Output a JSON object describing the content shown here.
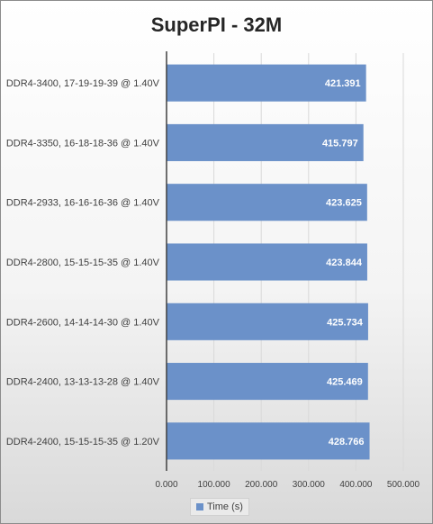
{
  "chart_data": {
    "type": "bar",
    "orientation": "horizontal",
    "title": "SuperPI - 32M",
    "categories": [
      "DDR4-3400, 17-19-19-39 @ 1.40V",
      "DDR4-3350, 16-18-18-36 @ 1.40V",
      "DDR4-2933, 16-16-16-36 @ 1.40V",
      "DDR4-2800, 15-15-15-35 @ 1.40V",
      "DDR4-2600, 14-14-14-30 @ 1.40V",
      "DDR4-2400, 13-13-13-28 @ 1.40V",
      "DDR4-2400, 15-15-15-35 @ 1.20V"
    ],
    "series": [
      {
        "name": "Time (s)",
        "values": [
          421.391,
          415.797,
          423.625,
          423.844,
          425.734,
          425.469,
          428.766
        ],
        "labels": [
          "421.391",
          "415.797",
          "423.625",
          "423.844",
          "425.734",
          "425.469",
          "428.766"
        ],
        "color": "#6b91c9"
      }
    ],
    "xlim": [
      0,
      500
    ],
    "xticks": [
      "0.000",
      "100.000",
      "200.000",
      "300.000",
      "400.000",
      "500.000"
    ],
    "grid": true,
    "legend": "bottom"
  }
}
